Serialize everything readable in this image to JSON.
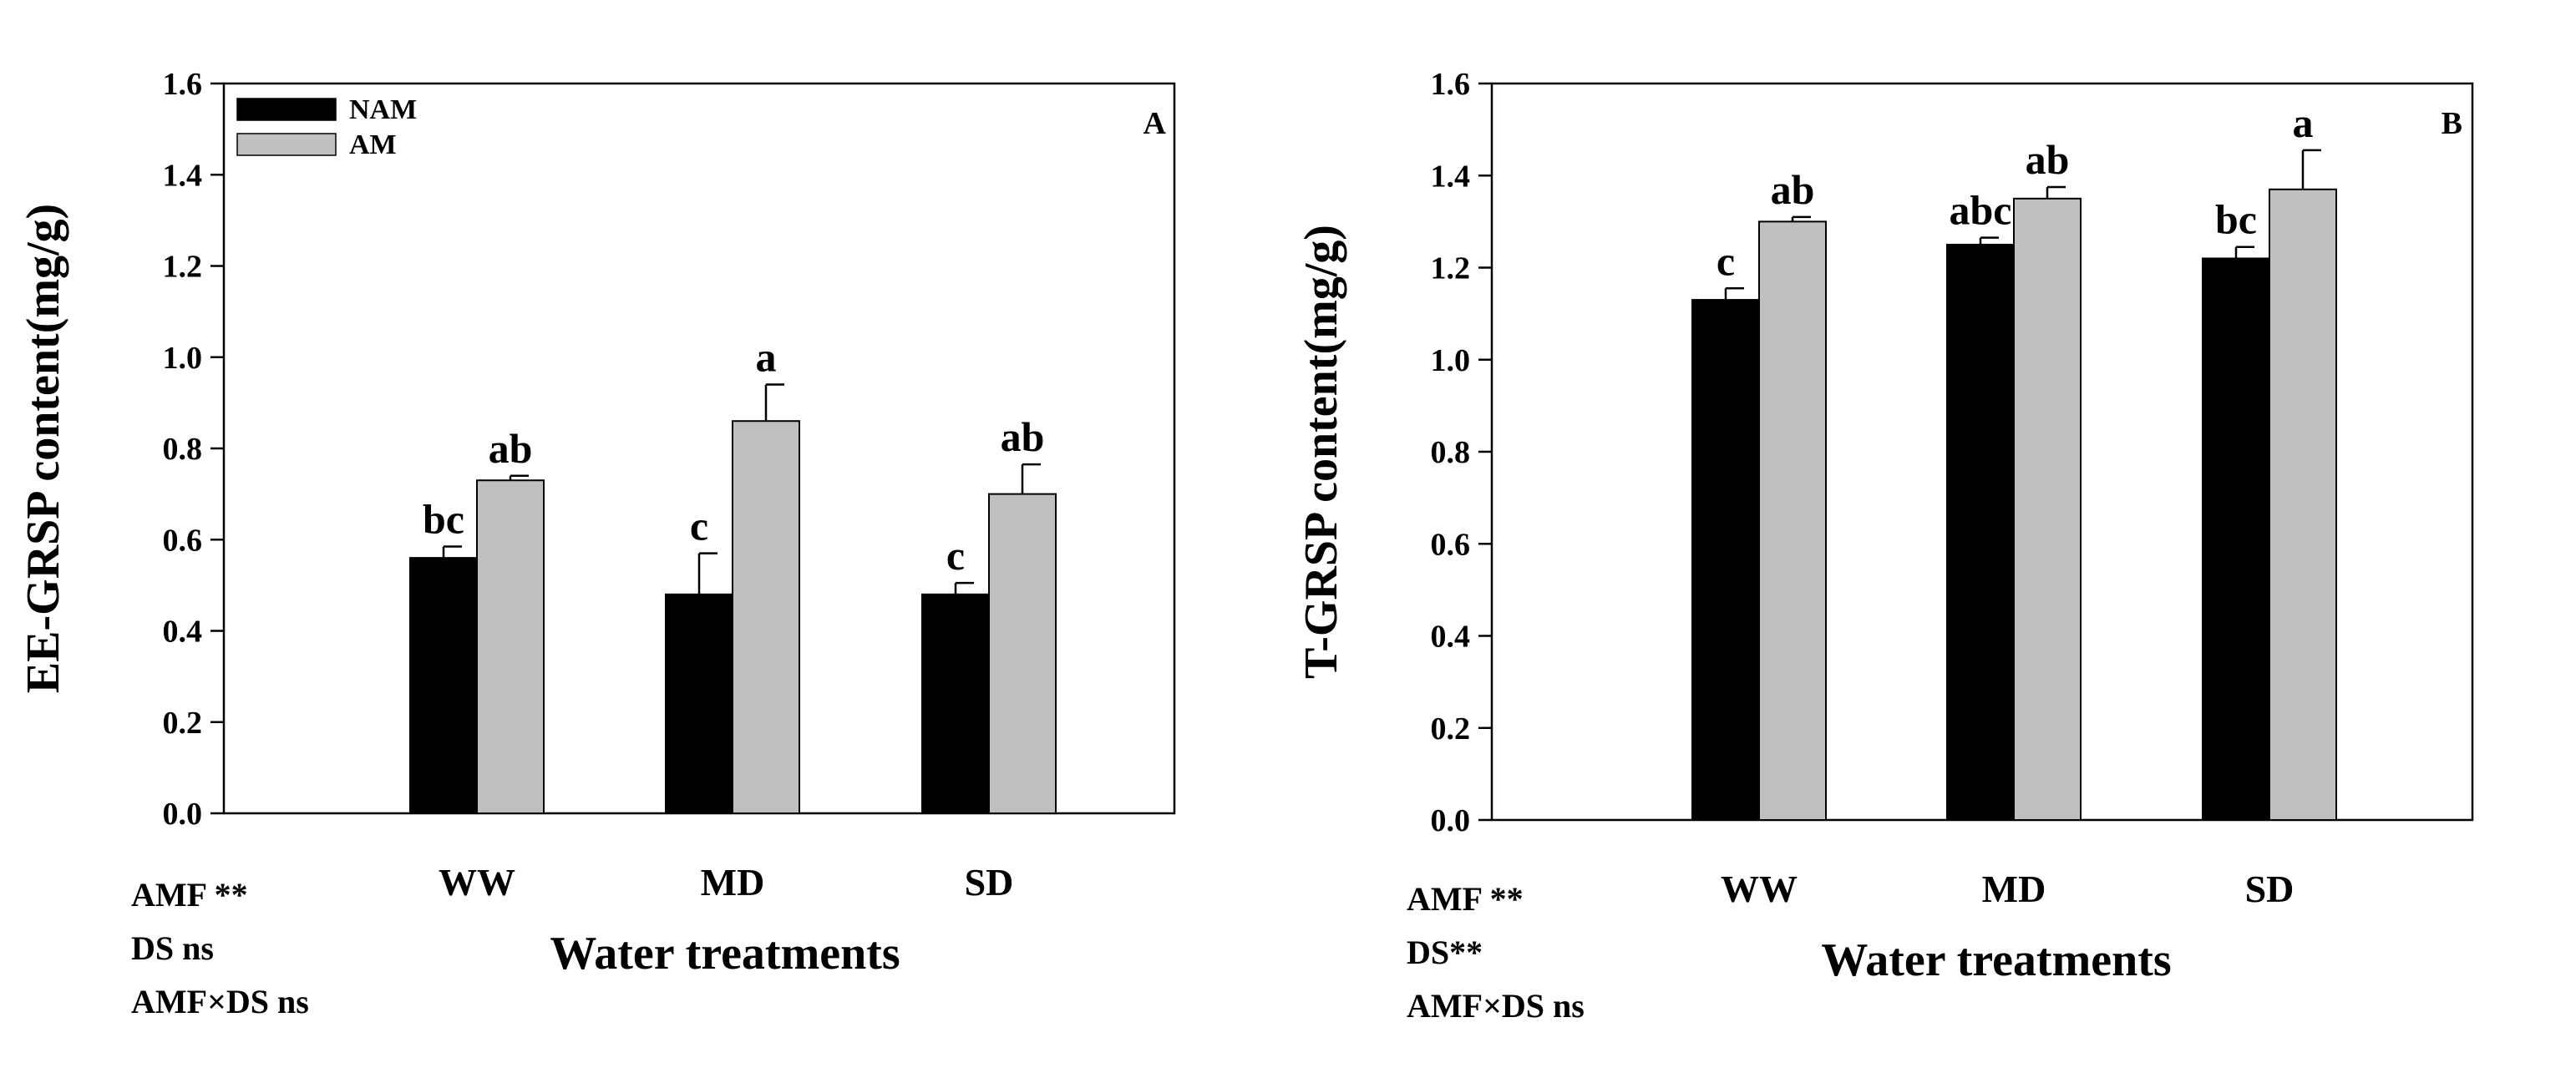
{
  "chart_data": [
    {
      "type": "bar",
      "panel_label": "A",
      "ylabel": "EE-GRSP content(mg/g)",
      "xlabel": "Water treatments",
      "categories": [
        "WW",
        "MD",
        "SD"
      ],
      "ylim": [
        0,
        1.6
      ],
      "yticks": [
        "0.0",
        "0.2",
        "0.4",
        "0.6",
        "0.8",
        "1.0",
        "1.2",
        "1.4",
        "1.6"
      ],
      "legend": {
        "placement": "top-left",
        "entries": [
          "NAM",
          "AM"
        ]
      },
      "series": [
        {
          "name": "NAM",
          "color": "#000000",
          "values": [
            0.56,
            0.48,
            0.48
          ],
          "errors": [
            0.025,
            0.09,
            0.025
          ],
          "letters": [
            "bc",
            "c",
            "c"
          ]
        },
        {
          "name": "AM",
          "color": "#c0c0c0",
          "values": [
            0.73,
            0.86,
            0.7
          ],
          "errors": [
            0.01,
            0.08,
            0.065
          ],
          "letters": [
            "ab",
            "a",
            "ab"
          ]
        }
      ],
      "stats": [
        "AMF **",
        "DS ns",
        "AMF×DS ns"
      ]
    },
    {
      "type": "bar",
      "panel_label": "B",
      "ylabel": "T-GRSP content(mg/g)",
      "xlabel": "Water treatments",
      "categories": [
        "WW",
        "MD",
        "SD"
      ],
      "ylim": [
        0,
        1.6
      ],
      "yticks": [
        "0.0",
        "0.2",
        "0.4",
        "0.6",
        "0.8",
        "1.0",
        "1.2",
        "1.4",
        "1.6"
      ],
      "series": [
        {
          "name": "NAM",
          "color": "#000000",
          "values": [
            1.13,
            1.25,
            1.22
          ],
          "errors": [
            0.025,
            0.015,
            0.025
          ],
          "letters": [
            "c",
            "abc",
            "bc"
          ]
        },
        {
          "name": "AM",
          "color": "#c0c0c0",
          "values": [
            1.3,
            1.35,
            1.37
          ],
          "errors": [
            0.01,
            0.025,
            0.085
          ],
          "letters": [
            "ab",
            "ab",
            "a"
          ]
        }
      ],
      "stats": [
        "AMF **",
        "DS**",
        "AMF×DS ns"
      ]
    }
  ]
}
